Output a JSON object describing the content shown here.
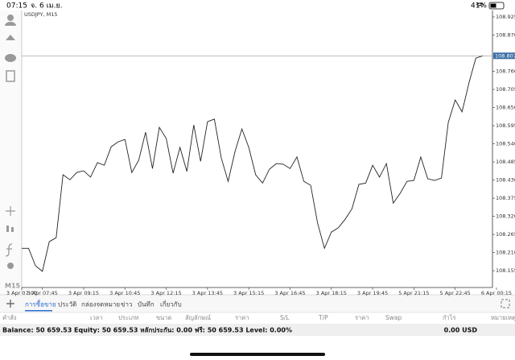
{
  "status_bar": {
    "time": "07:15",
    "date": "จ. 6 เม.ย.",
    "battery": "41%"
  },
  "chart": {
    "type": "line",
    "title": "USDJPY, M15",
    "timeframe": "M15",
    "color": "#222222",
    "grid": false,
    "categories": [
      "3 Apr 07:00",
      null,
      null,
      "3 Apr 07:45",
      null,
      null,
      null,
      null,
      null,
      "3 Apr 09:15",
      null,
      null,
      null,
      null,
      null,
      "3 Apr 10:45",
      null,
      null,
      null,
      null,
      null,
      "3 Apr 12:15",
      null,
      null,
      null,
      null,
      null,
      "3 Apr 13:45",
      null,
      null,
      null,
      null,
      null,
      "3 Apr 15:15",
      null,
      null,
      null,
      null,
      null,
      "3 Apr 16:45",
      null,
      null,
      null,
      null,
      null,
      "3 Apr 18:15",
      null,
      null,
      null,
      null,
      null,
      "3 Apr 19:45",
      null,
      null,
      null,
      null,
      null,
      "5 Apr 21:15",
      null,
      null,
      null,
      null,
      null,
      "5 Apr 22:45",
      null,
      null,
      null,
      null,
      null,
      "6 Apr 00:15"
    ],
    "values": [
      108.223,
      108.223,
      108.17,
      108.153,
      108.243,
      108.255,
      108.446,
      108.431,
      108.453,
      108.458,
      108.439,
      108.483,
      108.475,
      108.531,
      108.546,
      108.553,
      108.453,
      108.49,
      108.575,
      108.465,
      108.59,
      108.556,
      108.451,
      108.529,
      108.456,
      108.597,
      108.487,
      108.607,
      108.615,
      108.497,
      108.426,
      108.517,
      108.585,
      108.529,
      108.446,
      108.421,
      108.463,
      108.48,
      108.478,
      108.465,
      108.5,
      108.426,
      108.414,
      108.299,
      108.223,
      108.272,
      108.285,
      108.311,
      108.343,
      108.417,
      108.421,
      108.475,
      108.439,
      108.48,
      108.36,
      108.39,
      108.426,
      108.429,
      108.5,
      108.434,
      108.429,
      108.436,
      108.605,
      108.673,
      108.637,
      108.725,
      108.8,
      108.807,
      null,
      null
    ],
    "ylim": [
      108.104,
      108.947
    ],
    "yticks": [
      108.925,
      {
        "value": 108.87,
        "label": "108.870"
      },
      {
        "value": 108.76,
        "label": "108.760"
      },
      108.705,
      {
        "value": 108.65,
        "label": "108.650"
      },
      108.595,
      {
        "value": 108.54,
        "label": "108.540"
      },
      108.485,
      {
        "value": 108.43,
        "label": "108.430"
      },
      108.375,
      {
        "value": 108.32,
        "label": "108.320"
      },
      108.265,
      {
        "value": 108.21,
        "label": "108.210"
      },
      108.155
    ],
    "current_price": 108.807
  },
  "tabs": [
    "การซื้อขาย",
    "ประวัติ",
    "กล่องจดหมาย",
    "ข่าว",
    "บันทึก",
    "เกี่ยวกับ"
  ],
  "table": {
    "columns": [
      "คำสั่ง",
      "เวลา",
      "ประเภท",
      "ขนาด",
      "สัญลักษณ์",
      "ราคา",
      "S/L",
      "T/P",
      "ราคา",
      "Swap",
      "กำไร",
      "หมายเหตุ"
    ]
  },
  "account": {
    "summary": "Balance: 50 659.53 Equity: 50 659.53 หลักประกัน: 0.00 ฟรี: 50 659.53 Level: 0.00%",
    "profit": "0.00 USD"
  }
}
